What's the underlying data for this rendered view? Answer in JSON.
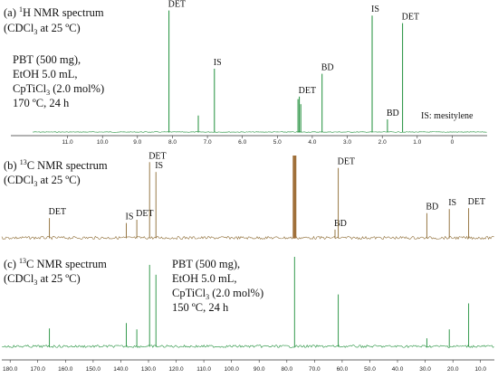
{
  "panels": [
    {
      "id": "a",
      "title_prefix": "(a) ",
      "title_sup": "1",
      "title_rest": "H NMR spectrum",
      "condition_main": "(CDCl",
      "condition_sub": "3",
      "condition_rest": " at 25 ºC)",
      "info_lines": [
        "PBT (500 mg),",
        "EtOH 5.0 mL,"
      ],
      "info_cat_main": "CpTiCl",
      "info_cat_sub": "3",
      "info_cat_rest": " (2.0 mol%)",
      "info_temp": "170 ºC, 24 h",
      "note": "IS: mesitylene",
      "color": "#1f8f3a"
    },
    {
      "id": "b",
      "title_prefix": "(b) ",
      "title_sup": "13",
      "title_rest": "C NMR spectrum",
      "condition_main": "(CDCl",
      "condition_sub": "3",
      "condition_rest": " at 25 ºC)",
      "color": "#8c6a32"
    },
    {
      "id": "c",
      "title_prefix": "(c) ",
      "title_sup": "13",
      "title_rest": "C NMR spectrum",
      "condition_main": "(CDCl",
      "condition_sub": "3",
      "condition_rest": " at 25 ºC)",
      "info_lines": [
        "PBT (500 mg),",
        "EtOH 5.0 mL,"
      ],
      "info_cat_main": "CpTiCl",
      "info_cat_sub": "3",
      "info_cat_rest": " (2.0 mol%)",
      "info_temp": "150 ºC, 24 h",
      "color": "#1f8f3a"
    }
  ],
  "chart_data": [
    {
      "type": "line",
      "title": "(a) 1H NMR spectrum (CDCl3 at 25 ºC)",
      "xlabel": "",
      "ylabel": "",
      "xlim": [
        12.0,
        -1.0
      ],
      "x_ticks": [
        "11.0",
        "10.0",
        "9.0",
        "8.0",
        "7.0",
        "6.0",
        "5.0",
        "4.0",
        "3.0",
        "2.0",
        "1.0",
        "0"
      ],
      "peaks": [
        {
          "x": 8.1,
          "h": 0.96,
          "label": "DET"
        },
        {
          "x": 7.26,
          "h": 0.13
        },
        {
          "x": 6.8,
          "h": 0.5,
          "label": "IS"
        },
        {
          "x": 4.41,
          "h": 0.26
        },
        {
          "x": 4.37,
          "h": 0.28,
          "label": "DET"
        },
        {
          "x": 4.33,
          "h": 0.22
        },
        {
          "x": 3.72,
          "h": 0.46,
          "label": "BD"
        },
        {
          "x": 2.29,
          "h": 0.92,
          "label": "IS"
        },
        {
          "x": 1.85,
          "h": 0.1,
          "label": "BD"
        },
        {
          "x": 1.42,
          "h": 0.86,
          "label": "DET"
        }
      ]
    },
    {
      "type": "line",
      "title": "(b) 13C NMR spectrum (CDCl3 at 25 ºC)",
      "xlabel": "",
      "ylabel": "",
      "xlim": [
        183.0,
        5.0
      ],
      "peaks": [
        {
          "x": 165.8,
          "h": 0.24,
          "label": "DET"
        },
        {
          "x": 138.0,
          "h": 0.18,
          "label": "IS"
        },
        {
          "x": 134.2,
          "h": 0.22,
          "label": "DET"
        },
        {
          "x": 129.6,
          "h": 0.92,
          "label": "DET"
        },
        {
          "x": 127.3,
          "h": 0.8,
          "label": "IS"
        },
        {
          "x": 77.2,
          "h": 1.0
        },
        {
          "x": 62.6,
          "h": 0.1,
          "label": "BD"
        },
        {
          "x": 61.4,
          "h": 0.85,
          "label": "DET"
        },
        {
          "x": 29.4,
          "h": 0.3,
          "label": "BD"
        },
        {
          "x": 21.3,
          "h": 0.35,
          "label": "IS"
        },
        {
          "x": 14.3,
          "h": 0.36,
          "label": "DET"
        }
      ]
    },
    {
      "type": "line",
      "title": "(c) 13C NMR spectrum (CDCl3 at 25 ºC)",
      "xlabel": "",
      "ylabel": "",
      "xlim": [
        183.0,
        5.0
      ],
      "x_ticks": [
        "180.0",
        "170.0",
        "160.0",
        "150.0",
        "140.0",
        "130.0",
        "120.0",
        "110.0",
        "100.0",
        "90.0",
        "80.0",
        "70.0",
        "60.0",
        "50.0",
        "40.0",
        "30.0",
        "20.0",
        "10.0"
      ],
      "peaks": [
        {
          "x": 165.8,
          "h": 0.2
        },
        {
          "x": 138.0,
          "h": 0.26
        },
        {
          "x": 134.2,
          "h": 0.19
        },
        {
          "x": 129.6,
          "h": 0.91
        },
        {
          "x": 127.3,
          "h": 0.8
        },
        {
          "x": 77.2,
          "h": 1.0
        },
        {
          "x": 61.4,
          "h": 0.58
        },
        {
          "x": 29.4,
          "h": 0.09
        },
        {
          "x": 21.3,
          "h": 0.19
        },
        {
          "x": 14.3,
          "h": 0.48
        }
      ]
    }
  ]
}
